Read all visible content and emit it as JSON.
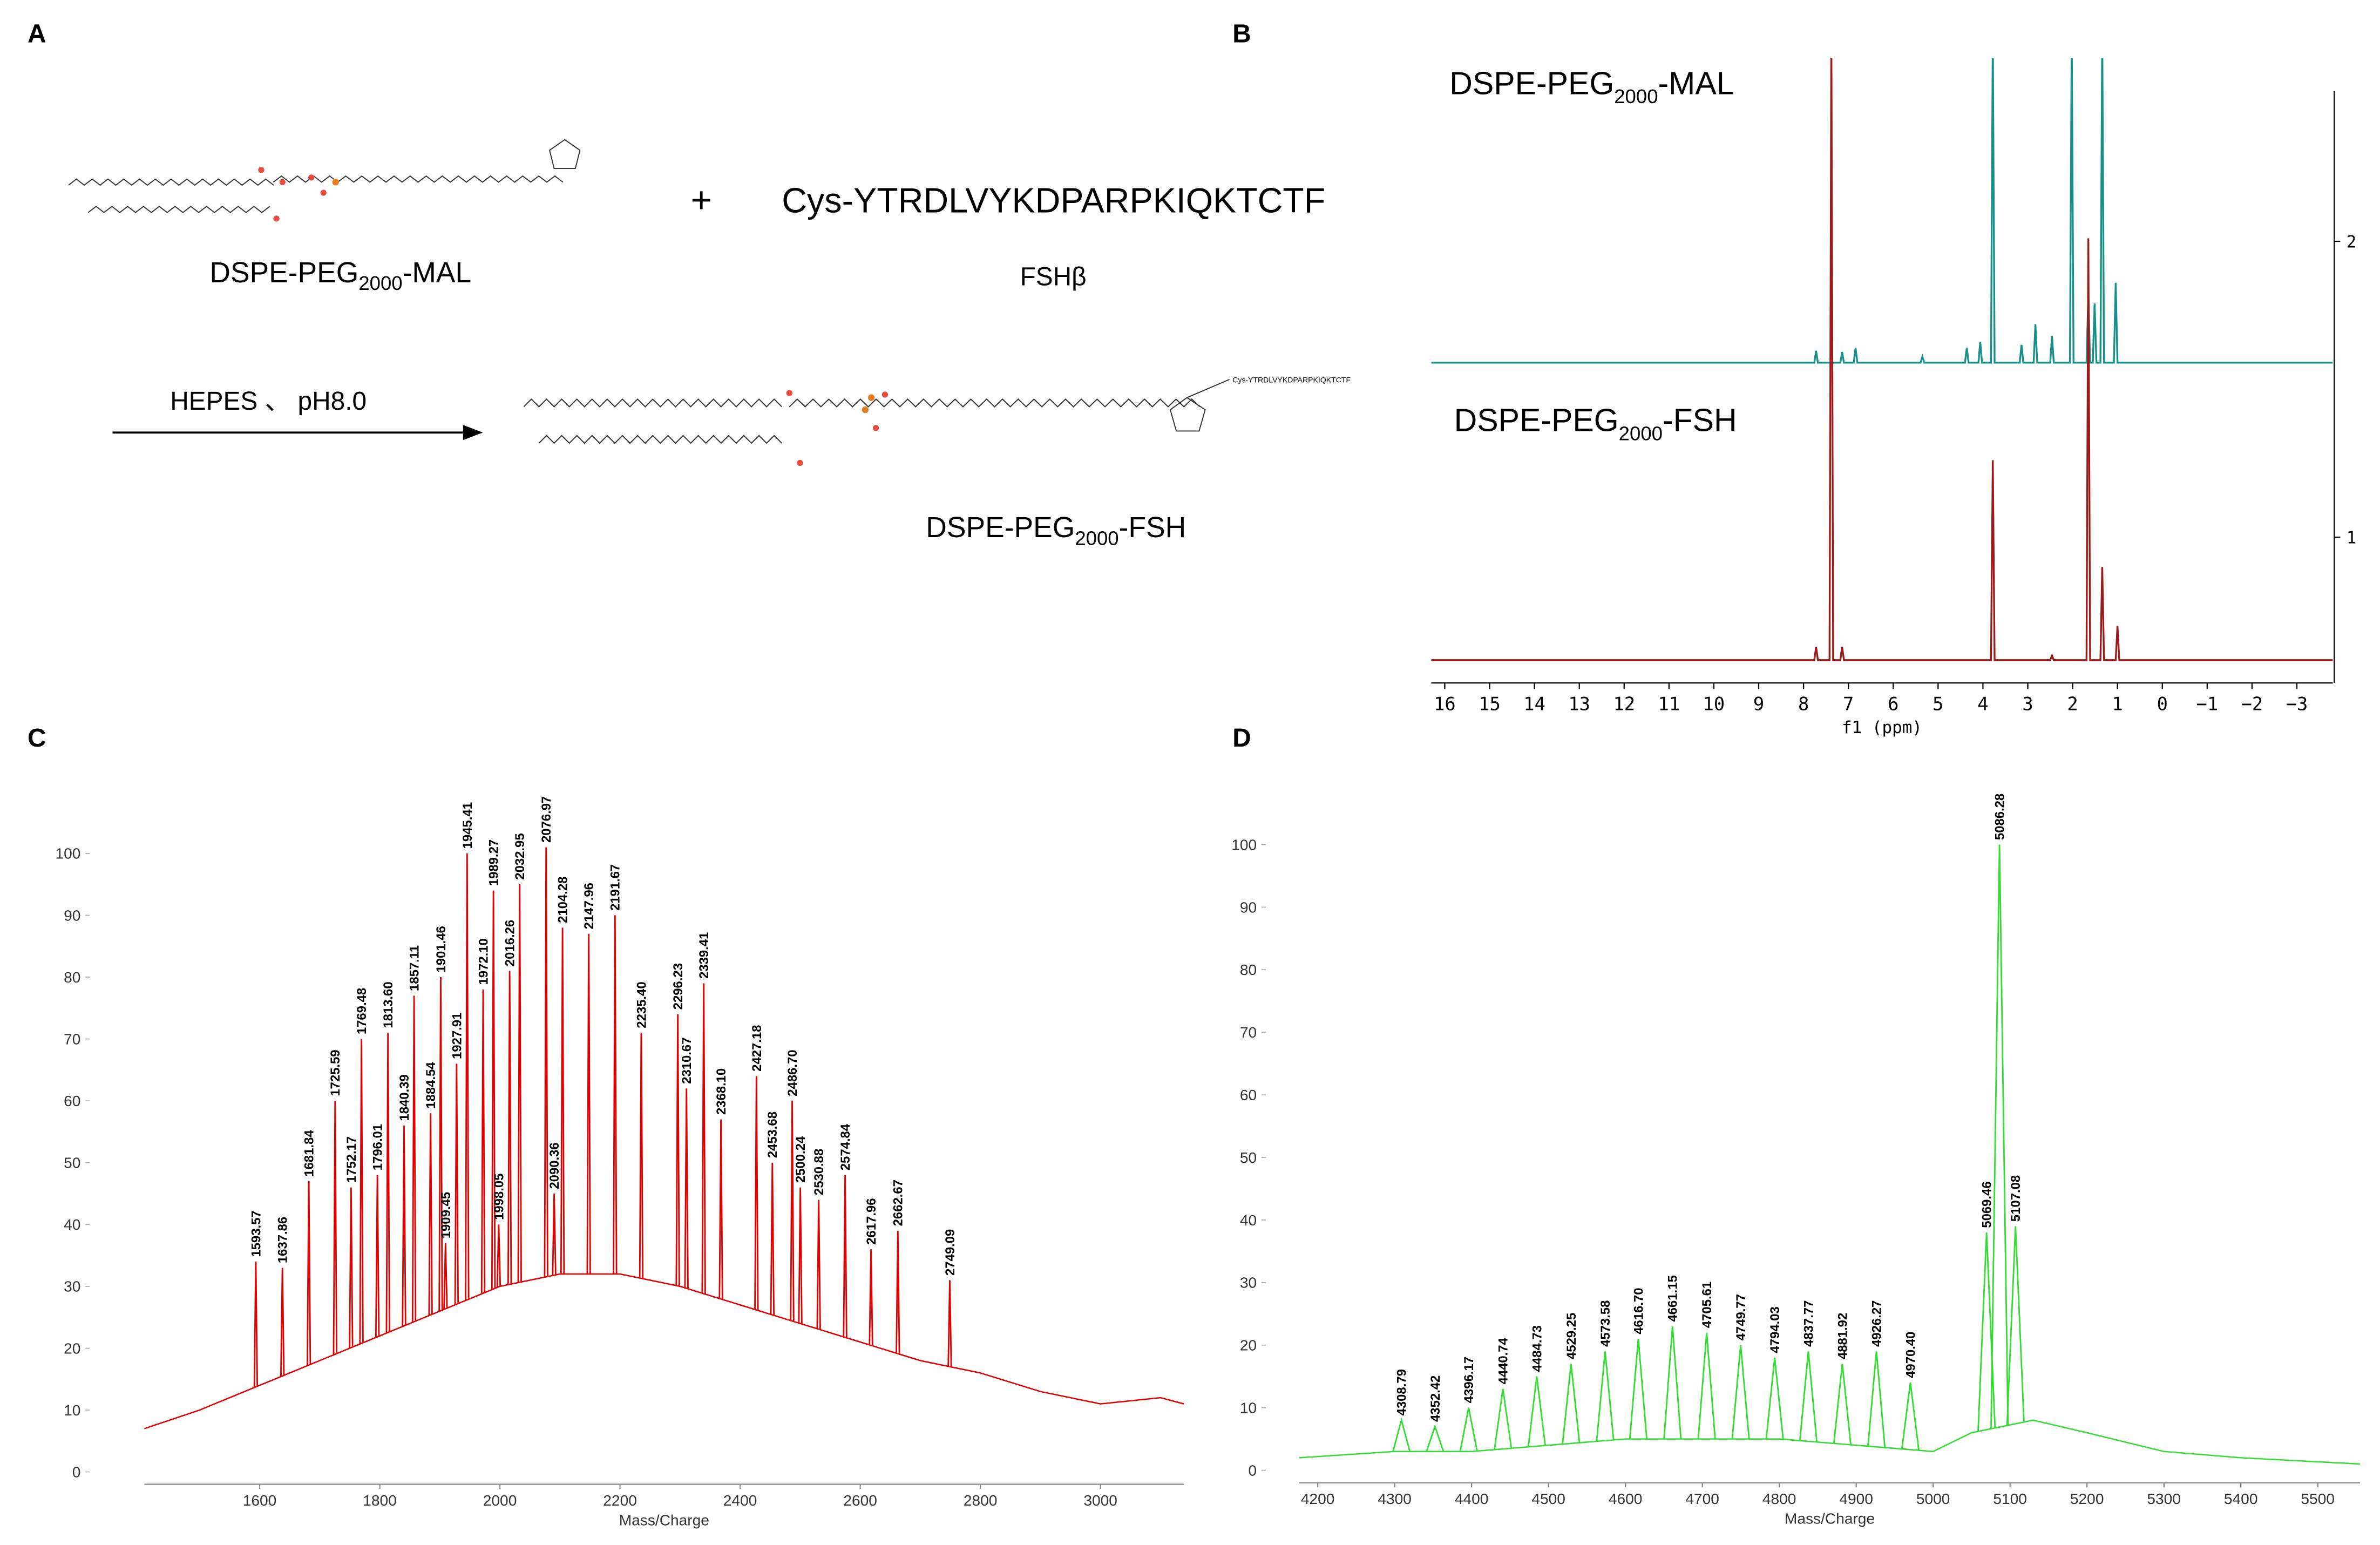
{
  "panel_labels": [
    "A",
    "B",
    "C",
    "D"
  ],
  "scheme": {
    "reactant": [
      "DSPE-PEG",
      "2000",
      "-MAL"
    ],
    "plus": "+",
    "peptide": "Cys-YTRDLVYKDPARPKIQKTCTF",
    "peptide_name": "FSHβ",
    "conditions": "HEPES 、 pH8.0",
    "product": [
      "DSPE-PEG",
      "2000",
      "-FSH"
    ],
    "product_tag": "Cys-YTRDLVYKDPARPKIQKTCTF"
  },
  "chart_data": [
    {
      "type": "line",
      "xlabel": "f1 (ppm)",
      "xlim": [
        16.3,
        -3.8
      ],
      "xticks": [
        16,
        15,
        14,
        13,
        12,
        11,
        10,
        9,
        8,
        7,
        6,
        5,
        4,
        3,
        2,
        1,
        0,
        {
          "value": -1,
          "label": "−1"
        },
        {
          "value": -2,
          "label": "−2"
        },
        {
          "value": -3,
          "label": "−3"
        }
      ],
      "y2lim": [
        0.5,
        2.5
      ],
      "y2ticks": [
        1,
        2
      ],
      "series": [
        {
          "name": [
            "DSPE-PEG",
            "2000",
            "-MAL"
          ],
          "color": "#17908a",
          "axis": "y2",
          "x": [
            16.3,
            7.76,
            7.72,
            7.68,
            7.18,
            7.14,
            7.1,
            6.88,
            6.84,
            6.8,
            5.39,
            5.35,
            5.31,
            4.4,
            4.36,
            4.32,
            4.1,
            4.06,
            4.02,
            3.82,
            3.78,
            3.74,
            3.18,
            3.14,
            3.1,
            2.87,
            2.83,
            2.79,
            2.5,
            2.46,
            2.42,
            2.06,
            2.02,
            1.98,
            1.69,
            1.65,
            1.61,
            1.55,
            1.51,
            1.47,
            1.38,
            1.34,
            1.3,
            1.08,
            1.04,
            1.0,
            -3.8
          ],
          "values": [
            1.59,
            1.59,
            1.63,
            1.59,
            1.59,
            1.626,
            1.59,
            1.59,
            1.64,
            1.59,
            1.59,
            1.61,
            1.59,
            1.59,
            1.64,
            1.59,
            1.59,
            1.66,
            1.59,
            1.59,
            2.7,
            1.59,
            1.59,
            1.65,
            1.59,
            1.59,
            1.72,
            1.59,
            1.59,
            1.68,
            1.59,
            1.59,
            2.7,
            1.59,
            1.59,
            1.82,
            1.59,
            1.59,
            1.79,
            1.59,
            1.59,
            2.7,
            1.59,
            1.59,
            1.86,
            1.59,
            1.59
          ]
        },
        {
          "name": [
            "DSPE-PEG",
            "2000",
            "-FSH"
          ],
          "color": "#9b1b1b",
          "axis": "y2",
          "x": [
            16.3,
            7.76,
            7.72,
            7.68,
            7.42,
            7.38,
            7.34,
            7.18,
            7.14,
            7.1,
            3.82,
            3.78,
            3.74,
            2.5,
            2.46,
            2.42,
            1.69,
            1.65,
            1.61,
            1.38,
            1.34,
            1.3,
            1.04,
            1.0,
            0.96,
            -3.8
          ],
          "values": [
            0.585,
            0.585,
            0.63,
            0.585,
            0.585,
            2.7,
            0.585,
            0.585,
            0.63,
            0.585,
            0.585,
            1.26,
            0.585,
            0.585,
            0.6,
            0.585,
            0.585,
            2.01,
            0.585,
            0.585,
            0.9,
            0.585,
            0.585,
            0.7,
            0.585,
            0.585
          ]
        }
      ]
    },
    {
      "type": "spectrum",
      "xlabel": "Mass/Charge",
      "color": "#e00000",
      "xlim": [
        1408,
        3139
      ],
      "xticks": [
        1600,
        1800,
        2000,
        2200,
        2400,
        2600,
        2800,
        3000
      ],
      "ylim": [
        -2,
        104
      ],
      "yticks": [
        0,
        10,
        20,
        30,
        40,
        50,
        60,
        70,
        80,
        90,
        100
      ],
      "envelope": {
        "x": [
          1408,
          1500,
          1600,
          1700,
          1800,
          1900,
          2000,
          2100,
          2200,
          2300,
          2400,
          2500,
          2600,
          2700,
          2800,
          2900,
          3000,
          3100,
          3139
        ],
        "values": [
          7,
          10,
          14,
          18,
          22,
          26,
          30,
          32,
          32,
          30,
          27,
          24,
          21,
          18,
          16,
          13,
          11,
          12,
          11
        ]
      },
      "peaks": {
        "x": [
          1593.57,
          1637.86,
          1681.84,
          1725.59,
          1752.17,
          1769.48,
          1796.01,
          1813.6,
          1840.39,
          1857.11,
          1884.54,
          1901.46,
          1909.45,
          1927.91,
          1945.41,
          1972.1,
          1989.27,
          1998.05,
          2016.26,
          2032.95,
          2076.97,
          2090.36,
          2104.28,
          2147.96,
          2191.67,
          2235.4,
          2296.23,
          2310.67,
          2339.41,
          2368.1,
          2427.18,
          2453.68,
          2486.7,
          2500.24,
          2530.88,
          2574.84,
          2617.96,
          2662.67,
          2749.09
        ],
        "values": [
          34,
          33,
          47,
          60,
          46,
          70,
          48,
          71,
          56,
          77,
          58,
          80,
          37,
          66,
          100,
          78,
          94,
          40,
          81,
          95,
          101,
          45,
          88,
          87,
          90,
          71,
          74,
          62,
          79,
          57,
          64,
          50,
          60,
          46,
          44,
          48,
          36,
          39,
          31
        ],
        "labels": [
          "1593.57",
          "1637.86",
          "1681.84",
          "1725.59",
          "1752.17",
          "1769.48",
          "1796.01",
          "1813.60",
          "1840.39",
          "1857.11",
          "1884.54",
          "1901.46",
          "1909.45",
          "1927.91",
          "1945.41",
          "1972.10",
          "1989.27",
          "1998.05",
          "2016.26",
          "2032.95",
          "2076.97",
          "2090.36",
          "2104.28",
          "2147.96",
          "2191.67",
          "2235.40",
          "2296.23",
          "2310.67",
          "2339.41",
          "2368.10",
          "2427.18",
          "2453.68",
          "2486.70",
          "2500.24",
          "2530.88",
          "2574.84",
          "2617.96",
          "2662.67",
          "2749.09"
        ]
      }
    },
    {
      "type": "spectrum",
      "xlabel": "Mass/Charge",
      "color": "#33dd33",
      "xlim": [
        4176,
        5555
      ],
      "xticks": [
        4200,
        4300,
        4400,
        4500,
        4600,
        4700,
        4800,
        4900,
        5000,
        5100,
        5200,
        5300,
        5400,
        5500
      ],
      "ylim": [
        -2,
        104
      ],
      "yticks": [
        0,
        10,
        20,
        30,
        40,
        50,
        60,
        70,
        80,
        90,
        100
      ],
      "envelope": {
        "x": [
          4176,
          4300,
          4400,
          4500,
          4600,
          4700,
          4800,
          4900,
          5000,
          5050,
          5130,
          5200,
          5300,
          5400,
          5555
        ],
        "values": [
          2,
          3,
          3,
          4,
          5,
          5,
          5,
          4,
          3,
          6,
          8,
          6,
          3,
          2,
          1
        ]
      },
      "peaks": {
        "x": [
          4308.79,
          4352.42,
          4396.17,
          4440.74,
          4484.73,
          4529.25,
          4573.58,
          4616.7,
          4661.15,
          4705.61,
          4749.77,
          4794.03,
          4837.77,
          4881.92,
          4926.27,
          4970.4,
          5069.46,
          5086.28,
          5107.08
        ],
        "values": [
          8,
          7,
          10,
          13,
          15,
          17,
          19,
          21,
          23,
          22,
          20,
          18,
          19,
          17,
          19,
          14,
          38,
          100,
          39
        ],
        "labels": [
          "4308.79",
          "4352.42",
          "4396.17",
          "4440.74",
          "4484.73",
          "4529.25",
          "4573.58",
          "4616.70",
          "4661.15",
          "4705.61",
          "4749.77",
          "4794.03",
          "4837.77",
          "4881.92",
          "4926.27",
          "4970.40",
          "5069.46",
          "5086.28",
          "5107.08"
        ]
      }
    }
  ]
}
